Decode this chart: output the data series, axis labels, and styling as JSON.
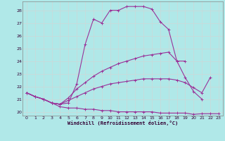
{
  "xlabel": "Windchill (Refroidissement éolien,°C)",
  "background_color": "#b0e8e8",
  "grid_color": "#c8dada",
  "line_color": "#993399",
  "xlim": [
    -0.5,
    23.5
  ],
  "ylim": [
    19.7,
    28.7
  ],
  "xticks": [
    0,
    1,
    2,
    3,
    4,
    5,
    6,
    7,
    8,
    9,
    10,
    11,
    12,
    13,
    14,
    15,
    16,
    17,
    18,
    19,
    20,
    21,
    22,
    23
  ],
  "yticks": [
    20,
    21,
    22,
    23,
    24,
    25,
    26,
    27,
    28
  ],
  "line1_x": [
    0,
    1,
    2,
    3,
    4,
    5,
    6,
    7,
    8,
    9,
    10,
    11,
    12,
    13,
    14,
    15,
    16,
    17,
    18,
    19
  ],
  "line1_y": [
    21.5,
    21.2,
    21.0,
    20.7,
    20.6,
    20.7,
    22.2,
    25.3,
    27.3,
    27.0,
    28.0,
    28.0,
    28.3,
    28.3,
    28.3,
    28.1,
    27.1,
    26.5,
    24.0,
    24.0
  ],
  "line2_x": [
    0,
    1,
    2,
    3,
    4,
    5,
    6,
    7,
    8,
    9,
    10,
    11,
    12,
    13,
    14,
    15,
    16,
    17,
    18,
    19,
    20,
    21,
    22,
    23
  ],
  "line2_y": [
    21.5,
    21.2,
    21.0,
    20.7,
    20.4,
    20.3,
    20.3,
    20.2,
    20.2,
    20.1,
    20.1,
    20.0,
    20.0,
    20.0,
    20.0,
    20.0,
    19.9,
    19.9,
    19.9,
    19.9,
    19.8,
    19.85,
    19.85,
    19.85
  ],
  "line3_x": [
    0,
    1,
    2,
    3,
    4,
    5,
    6,
    7,
    8,
    9,
    10,
    11,
    12,
    13,
    14,
    15,
    16,
    17,
    18,
    19,
    20,
    21
  ],
  "line3_y": [
    21.5,
    21.2,
    21.0,
    20.7,
    20.6,
    21.1,
    21.8,
    22.3,
    22.8,
    23.2,
    23.5,
    23.8,
    24.0,
    24.2,
    24.4,
    24.5,
    24.6,
    24.7,
    24.0,
    22.7,
    21.6,
    21.0
  ],
  "line4_x": [
    0,
    1,
    2,
    3,
    4,
    5,
    6,
    7,
    8,
    9,
    10,
    11,
    12,
    13,
    14,
    15,
    16,
    17,
    18,
    19,
    20,
    21,
    22
  ],
  "line4_y": [
    21.5,
    21.2,
    21.0,
    20.7,
    20.6,
    20.9,
    21.2,
    21.5,
    21.8,
    22.0,
    22.2,
    22.3,
    22.4,
    22.5,
    22.6,
    22.6,
    22.6,
    22.6,
    22.5,
    22.3,
    21.9,
    21.5,
    22.7
  ]
}
